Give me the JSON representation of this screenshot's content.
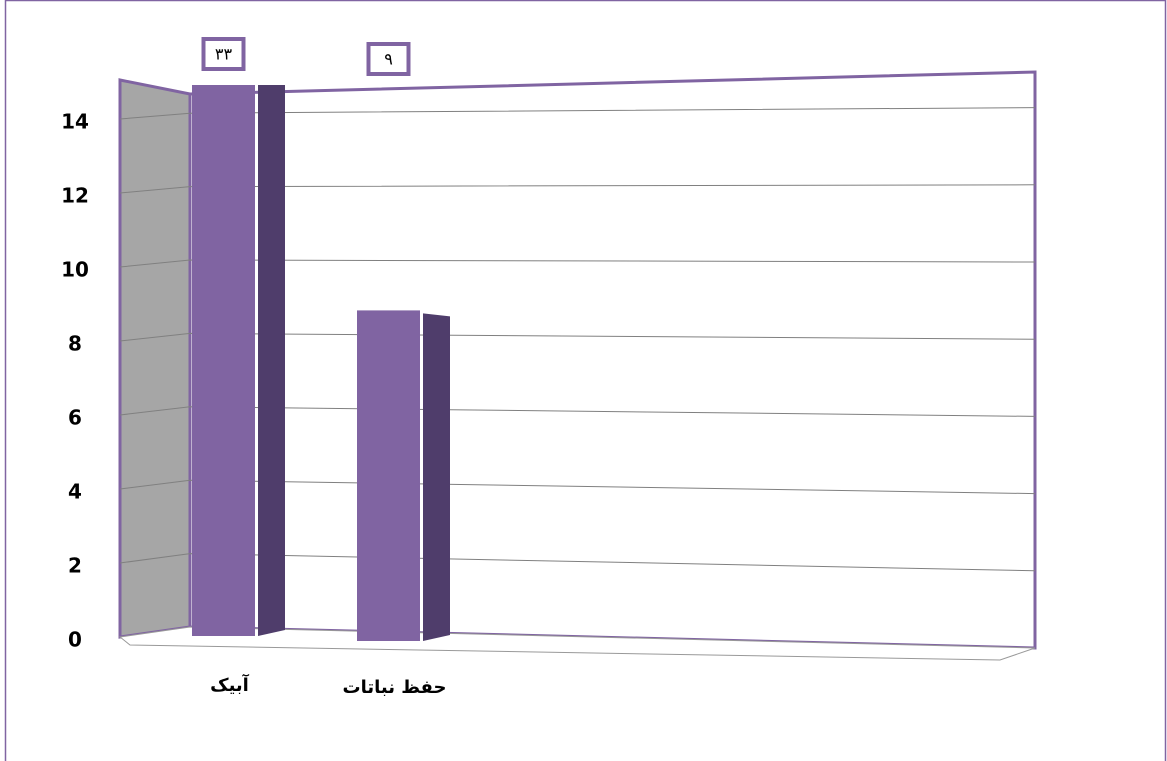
{
  "chart_data": {
    "type": "bar3d",
    "categories": [
      "آبیک",
      "حفظ نباتات"
    ],
    "values": [
      33,
      9
    ],
    "value_labels": [
      "۳۳",
      "۹"
    ],
    "color": "#8064a2",
    "ylim": [
      0,
      15
    ],
    "yticks": [
      0,
      2,
      4,
      6,
      8,
      10,
      12,
      14
    ],
    "grid": true
  }
}
